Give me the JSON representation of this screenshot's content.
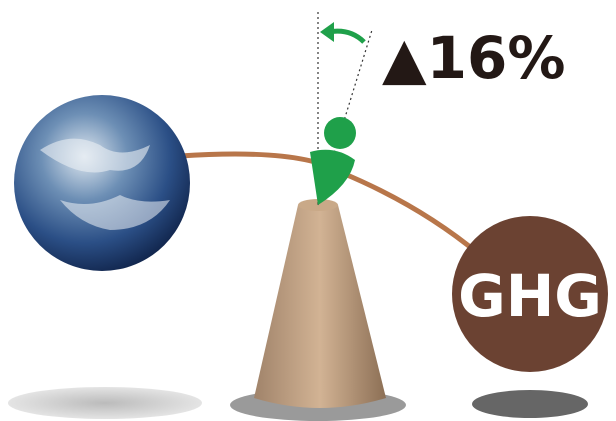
{
  "annotation": {
    "label": "▲16%"
  },
  "weight": {
    "label": "GHG"
  }
}
